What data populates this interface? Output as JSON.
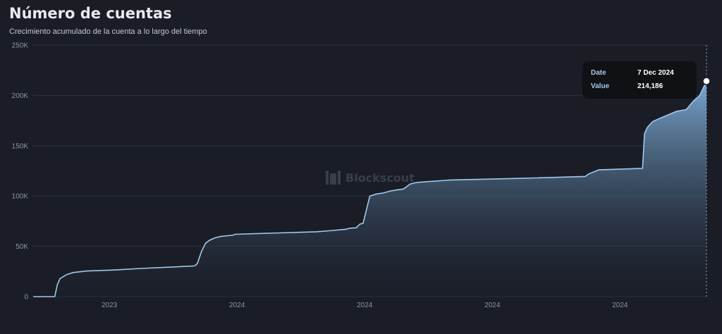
{
  "header": {
    "title": "Número de cuentas",
    "subtitle": "Crecimiento acumulado de la cuenta a lo largo del tiempo"
  },
  "watermark": "Blockscout",
  "tooltip": {
    "date_label": "Date",
    "date_value": "7 Dec 2024",
    "value_label": "Value",
    "value_value": "214,186"
  },
  "colors": {
    "line": "#9fc9ee",
    "fill_top": "#7fb0da",
    "fill_bottom": "#1c2230",
    "background": "#1a1d26"
  },
  "chart_data": {
    "type": "area",
    "title": "Número de cuentas",
    "subtitle": "Crecimiento acumulado de la cuenta a lo largo del tiempo",
    "ylim": [
      0,
      250000
    ],
    "y_ticks": [
      0,
      50000,
      100000,
      150000,
      200000,
      250000
    ],
    "y_tick_labels": [
      "0",
      "50K",
      "100K",
      "150K",
      "200K",
      "250K"
    ],
    "x_tick_labels": [
      "2023",
      "2024",
      "2024",
      "2024",
      "2024"
    ],
    "x_tick_positions": [
      0.1132,
      0.3028,
      0.4924,
      0.682,
      0.8716
    ],
    "grid": true,
    "legend": "none",
    "note_x": "x values are fractions of the time axis span",
    "x": [
      0.0,
      0.032,
      0.036,
      0.04,
      0.05,
      0.06,
      0.08,
      0.12,
      0.16,
      0.24,
      0.244,
      0.25,
      0.256,
      0.262,
      0.27,
      0.28,
      0.296,
      0.3,
      0.42,
      0.44,
      0.465,
      0.47,
      0.48,
      0.485,
      0.49,
      0.5,
      0.51,
      0.52,
      0.53,
      0.54,
      0.55,
      0.56,
      0.57,
      0.58,
      0.62,
      0.72,
      0.82,
      0.825,
      0.84,
      0.905,
      0.908,
      0.912,
      0.92,
      0.93,
      0.955,
      0.97,
      0.98,
      0.99,
      1.0
    ],
    "y": [
      0,
      0,
      12000,
      18000,
      22000,
      24000,
      25500,
      26500,
      28000,
      30500,
      33000,
      45000,
      53000,
      56000,
      58500,
      60000,
      61000,
      62000,
      64500,
      65500,
      67000,
      68000,
      68500,
      72000,
      73000,
      100000,
      102000,
      103000,
      105000,
      106000,
      107000,
      112000,
      113500,
      114000,
      116000,
      117500,
      119500,
      122000,
      126000,
      127500,
      162000,
      168000,
      174000,
      177000,
      184000,
      186000,
      194000,
      200000,
      214186
    ]
  }
}
